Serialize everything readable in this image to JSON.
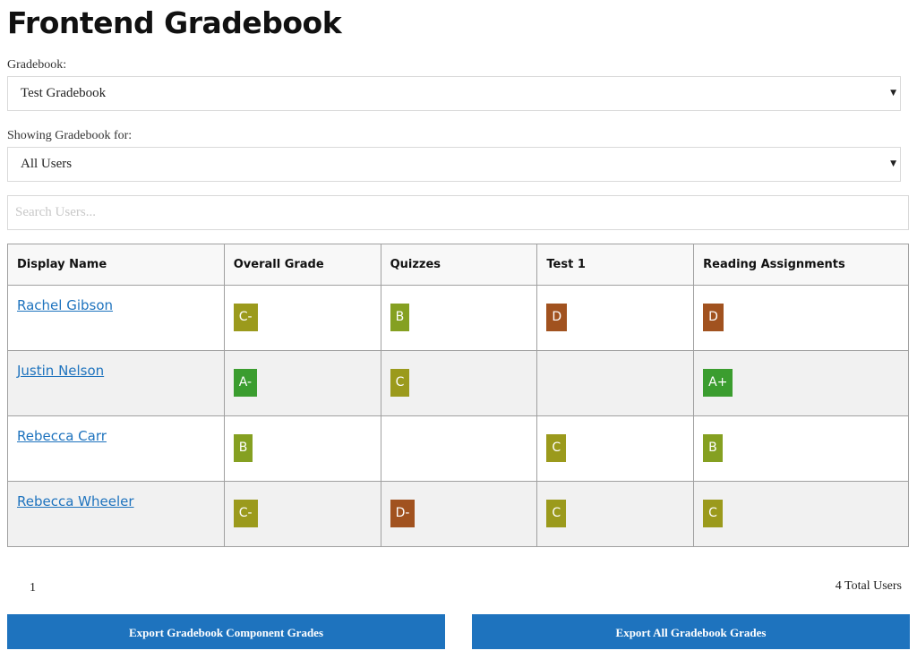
{
  "header": {
    "title": "Frontend Gradebook"
  },
  "gradebook_select": {
    "label": "Gradebook:",
    "value": "Test Gradebook"
  },
  "user_select": {
    "label": "Showing Gradebook for:",
    "value": "All Users"
  },
  "search": {
    "placeholder": "Search Users..."
  },
  "table": {
    "headers": [
      "Display Name",
      "Overall Grade",
      "Quizzes",
      "Test 1",
      "Reading Assignments"
    ],
    "rows": [
      {
        "name": "Rachel Gibson",
        "grades": [
          {
            "g": "C-",
            "color": "#9b9a1c"
          },
          {
            "g": "B",
            "color": "#85a021"
          },
          {
            "g": "D",
            "color": "#a1521f"
          },
          {
            "g": "D",
            "color": "#a1521f"
          }
        ]
      },
      {
        "name": "Justin Nelson",
        "grades": [
          {
            "g": "A-",
            "color": "#3b9d2f"
          },
          {
            "g": "C",
            "color": "#9b9a1c"
          },
          null,
          {
            "g": "A+",
            "color": "#3b9d2f"
          }
        ]
      },
      {
        "name": "Rebecca Carr",
        "grades": [
          {
            "g": "B",
            "color": "#85a021"
          },
          null,
          {
            "g": "C",
            "color": "#9b9a1c"
          },
          {
            "g": "B",
            "color": "#85a021"
          }
        ]
      },
      {
        "name": "Rebecca Wheeler",
        "grades": [
          {
            "g": "C-",
            "color": "#9b9a1c"
          },
          {
            "g": "D-",
            "color": "#a1521f"
          },
          {
            "g": "C",
            "color": "#9b9a1c"
          },
          {
            "g": "C",
            "color": "#9b9a1c"
          }
        ]
      }
    ]
  },
  "pagination": {
    "current_page": "1",
    "total_users": "4 Total Users"
  },
  "buttons": {
    "export_components": "Export Gradebook Component Grades",
    "export_all": "Export All Gradebook Grades"
  },
  "icons": {
    "caret": "caret-down-icon"
  },
  "colors": {
    "link": "#1e73be",
    "button": "#1e73be"
  }
}
